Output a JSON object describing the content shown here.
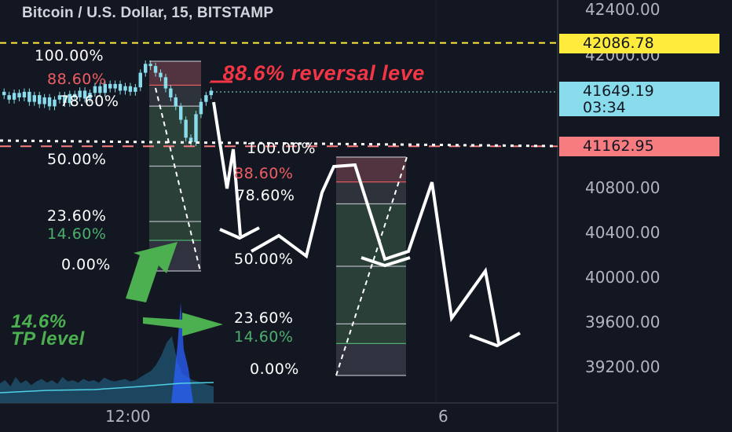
{
  "header": {
    "title": "Bitcoin / U.S. Dollar, 15, BITSTAMP"
  },
  "price_axis": {
    "labels": [
      "42400.00",
      "42000.00",
      "40800.00",
      "40400.00",
      "40000.00",
      "39600.00",
      "39200.00"
    ],
    "tags": {
      "yellow": "42086.78",
      "current_price": "41649.19",
      "countdown": "03:34",
      "red": "41162.95"
    }
  },
  "time_axis": {
    "labels": [
      "12:00",
      "6"
    ]
  },
  "fib_left": {
    "levels": [
      "100.00%",
      "88.60%",
      "78.60%",
      "50.00%",
      "23.60%",
      "14.60%",
      "0.00%"
    ]
  },
  "fib_right": {
    "levels": [
      "100.00%",
      "88.60%",
      "78.60%",
      "50.00%",
      "23.60%",
      "14.60%",
      "0.00%"
    ]
  },
  "annotations": {
    "reversal": "_88.6% reversal leve",
    "tp_line1": "14.6%",
    "tp_line2": "TP level"
  },
  "colors": {
    "background": "#131722",
    "candle": "#89dceb",
    "reversal_red": "#f23645",
    "tp_green": "#4caf50",
    "yellow_line": "#ffeb3b"
  },
  "chart_data": {
    "type": "candlestick",
    "symbol": "Bitcoin / U.S. Dollar",
    "interval": "15",
    "exchange": "BITSTAMP",
    "ylim": [
      39000,
      42500
    ],
    "y_ticks": [
      39200,
      39600,
      40000,
      40400,
      40800,
      42000,
      42400
    ],
    "x_ticks": [
      "12:00",
      "6"
    ],
    "last_price": 41649.19,
    "horizontal_levels": [
      42086.78,
      41162.95
    ],
    "closes": [
      41620,
      41580,
      41640,
      41600,
      41650,
      41560,
      41620,
      41540,
      41600,
      41520,
      41580,
      41620,
      41550,
      41630,
      41600,
      41660,
      41590,
      41640,
      41700,
      41640,
      41720,
      41680,
      41720,
      41660,
      41700,
      41650,
      41690,
      41820,
      41900,
      41880,
      41820,
      41780,
      41680,
      41600,
      41520,
      41400,
      41240,
      41200,
      41450,
      41560,
      41620,
      41660
    ],
    "volume_relative": [
      0.25,
      0.3,
      0.2,
      0.35,
      0.25,
      0.3,
      0.22,
      0.28,
      0.32,
      0.26,
      0.3,
      0.24,
      0.35,
      0.28,
      0.3,
      0.26,
      0.32,
      0.28,
      0.3,
      0.26,
      0.34,
      0.3,
      0.28,
      0.3,
      0.32,
      0.28,
      0.3,
      0.35,
      0.4,
      0.45,
      0.55,
      0.7,
      0.9,
      1.0,
      0.6,
      0.4,
      0.35,
      0.3,
      0.28,
      0.25,
      0.22,
      0.2
    ]
  }
}
